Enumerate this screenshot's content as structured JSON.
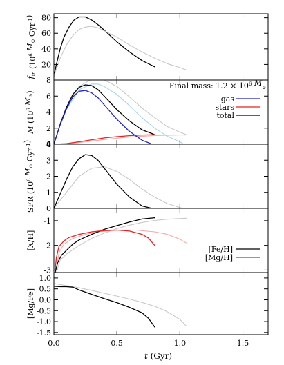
{
  "figure": {
    "xlabel": "t (Gyr)",
    "xlim": [
      0,
      1.7
    ],
    "xticks": [
      {
        "value": 0,
        "label": "0.0"
      },
      {
        "value": 0.5,
        "label": "0.5"
      },
      {
        "value": 1.0,
        "label": "1.0"
      },
      {
        "value": 1.5,
        "label": "1.5"
      }
    ],
    "colors": {
      "black": "#000000",
      "grey": "#c8c8c8",
      "blue": "#1f1fd0",
      "lightblue": "#a8d4ee",
      "red": "#e82020",
      "pink": "#f4a8a8"
    }
  },
  "chart_data": [
    {
      "type": "line",
      "id": "fin",
      "ylabel": "f_in (10^6 M_⊙ Gyr^-1)",
      "ylim": [
        0,
        85
      ],
      "yticks": [
        {
          "value": 20,
          "label": "20"
        },
        {
          "value": 40,
          "label": "40"
        },
        {
          "value": 60,
          "label": "60"
        },
        {
          "value": 80,
          "label": "80"
        }
      ],
      "series": [
        {
          "color": "black",
          "width": 1.3,
          "x": [
            0,
            0.02,
            0.05,
            0.08,
            0.12,
            0.16,
            0.2,
            0.25,
            0.3,
            0.35,
            0.4,
            0.5,
            0.6,
            0.7,
            0.8
          ],
          "y": [
            5,
            20,
            40,
            55,
            68,
            77,
            81,
            81,
            77,
            71,
            64,
            49,
            36,
            25,
            17
          ]
        },
        {
          "color": "grey",
          "width": 1.1,
          "x": [
            0,
            0.05,
            0.1,
            0.15,
            0.2,
            0.25,
            0.3,
            0.35,
            0.4,
            0.5,
            0.6,
            0.7,
            0.8,
            0.9,
            1.0,
            1.05
          ],
          "y": [
            5,
            28,
            45,
            57,
            65,
            68,
            69,
            67,
            63,
            55,
            45,
            36,
            28,
            21,
            16,
            13
          ]
        }
      ]
    },
    {
      "type": "line",
      "id": "mass",
      "ylabel": "M (10^6 M_⊙)",
      "ylim": [
        0,
        8
      ],
      "yticks": [
        {
          "value": 0,
          "label": "0"
        },
        {
          "value": 2,
          "label": "2"
        },
        {
          "value": 4,
          "label": "4"
        },
        {
          "value": 6,
          "label": "6"
        },
        {
          "value": 8,
          "label": "8"
        }
      ],
      "annotation": "Final mass: 1.2 × 10^6 M_⊙",
      "legend": [
        {
          "label": "gas",
          "color": "blue"
        },
        {
          "label": "stars",
          "color": "red"
        },
        {
          "label": "total",
          "color": "black"
        }
      ],
      "series": [
        {
          "color": "grey",
          "width": 1.1,
          "x": [
            0,
            0.05,
            0.1,
            0.2,
            0.3,
            0.35,
            0.4,
            0.5,
            0.6,
            0.7,
            0.8,
            0.9,
            1.0,
            1.05
          ],
          "y": [
            0,
            2.5,
            4.5,
            7.2,
            8.1,
            8.2,
            8.0,
            7.2,
            5.9,
            4.5,
            3.3,
            2.2,
            1.5,
            1.2
          ]
        },
        {
          "color": "lightblue",
          "width": 1.1,
          "x": [
            0,
            0.05,
            0.1,
            0.2,
            0.3,
            0.35,
            0.4,
            0.5,
            0.6,
            0.7,
            0.8,
            0.9,
            1.0,
            1.03
          ],
          "y": [
            0,
            2.4,
            4.3,
            6.8,
            7.5,
            7.5,
            7.2,
            6.2,
            4.8,
            3.3,
            2.0,
            1.0,
            0.3,
            0
          ]
        },
        {
          "color": "pink",
          "width": 1.1,
          "x": [
            0,
            0.1,
            0.2,
            0.3,
            0.4,
            0.5,
            0.6,
            0.7,
            0.8,
            0.9,
            1.0,
            1.05
          ],
          "y": [
            0,
            0.05,
            0.2,
            0.4,
            0.58,
            0.75,
            0.9,
            1.0,
            1.08,
            1.12,
            1.15,
            1.15
          ]
        },
        {
          "color": "black",
          "width": 1.3,
          "x": [
            0,
            0.05,
            0.1,
            0.15,
            0.2,
            0.25,
            0.3,
            0.35,
            0.4,
            0.5,
            0.6,
            0.7,
            0.8
          ],
          "y": [
            0,
            2.5,
            4.6,
            6.2,
            7.1,
            7.4,
            7.3,
            6.8,
            6.0,
            4.3,
            2.9,
            1.8,
            1.2
          ]
        },
        {
          "color": "blue",
          "width": 1.3,
          "x": [
            0,
            0.05,
            0.1,
            0.15,
            0.2,
            0.25,
            0.3,
            0.35,
            0.4,
            0.5,
            0.6,
            0.7,
            0.78
          ],
          "y": [
            0,
            2.4,
            4.4,
            5.9,
            6.6,
            6.7,
            6.4,
            5.8,
            4.9,
            3.1,
            1.6,
            0.5,
            0
          ]
        },
        {
          "color": "red",
          "width": 1.3,
          "x": [
            0,
            0.1,
            0.2,
            0.3,
            0.4,
            0.5,
            0.6,
            0.7,
            0.8
          ],
          "y": [
            0,
            0.08,
            0.3,
            0.55,
            0.78,
            0.95,
            1.07,
            1.15,
            1.2
          ]
        }
      ]
    },
    {
      "type": "line",
      "id": "sfr",
      "ylabel": "SFR (10^6 M_⊙ Gyr^-1)",
      "ylim": [
        0,
        4
      ],
      "yticks": [
        {
          "value": 0,
          "label": "0"
        },
        {
          "value": 1,
          "label": "1"
        },
        {
          "value": 2,
          "label": "2"
        },
        {
          "value": 3,
          "label": "3"
        },
        {
          "value": 4,
          "label": "4"
        }
      ],
      "series": [
        {
          "color": "grey",
          "width": 1.1,
          "x": [
            0,
            0.1,
            0.2,
            0.3,
            0.4,
            0.5,
            0.6,
            0.7,
            0.8,
            0.9,
            1.0,
            1.03
          ],
          "y": [
            0,
            1.0,
            2.0,
            2.5,
            2.6,
            2.3,
            1.8,
            1.2,
            0.7,
            0.3,
            0.05,
            0
          ]
        },
        {
          "color": "black",
          "width": 1.3,
          "x": [
            0,
            0.05,
            0.1,
            0.15,
            0.2,
            0.25,
            0.3,
            0.35,
            0.4,
            0.5,
            0.6,
            0.7,
            0.78
          ],
          "y": [
            0,
            0.9,
            1.8,
            2.6,
            3.1,
            3.35,
            3.3,
            3.0,
            2.5,
            1.5,
            0.7,
            0.15,
            0
          ]
        }
      ]
    },
    {
      "type": "line",
      "id": "xh",
      "ylabel": "[X/H]",
      "ylim": [
        -3.1,
        -0.5
      ],
      "yticks": [
        {
          "value": -3,
          "label": "-3"
        },
        {
          "value": -2,
          "label": "-2"
        },
        {
          "value": -1,
          "label": "-1"
        }
      ],
      "legend": [
        {
          "label": "[Fe/H]",
          "color": "black"
        },
        {
          "label": "[Mg/H]",
          "color": "red"
        }
      ],
      "series": [
        {
          "color": "grey",
          "width": 1.1,
          "x": [
            0.02,
            0.05,
            0.1,
            0.2,
            0.3,
            0.4,
            0.5,
            0.6,
            0.7,
            0.8,
            0.9,
            1.05
          ],
          "y": [
            -3.1,
            -2.6,
            -2.35,
            -2.0,
            -1.72,
            -1.5,
            -1.32,
            -1.18,
            -1.07,
            -0.99,
            -0.94,
            -0.9
          ]
        },
        {
          "color": "pink",
          "width": 1.1,
          "x": [
            0.02,
            0.04,
            0.08,
            0.15,
            0.25,
            0.35,
            0.5,
            0.65,
            0.8,
            0.9,
            1.0,
            1.05
          ],
          "y": [
            -3.0,
            -2.3,
            -1.95,
            -1.72,
            -1.55,
            -1.45,
            -1.38,
            -1.38,
            -1.45,
            -1.55,
            -1.75,
            -1.9
          ]
        },
        {
          "color": "black",
          "width": 1.3,
          "x": [
            0.01,
            0.03,
            0.06,
            0.1,
            0.15,
            0.2,
            0.3,
            0.4,
            0.5,
            0.6,
            0.7,
            0.8
          ],
          "y": [
            -3.1,
            -2.7,
            -2.4,
            -2.2,
            -1.95,
            -1.78,
            -1.55,
            -1.35,
            -1.2,
            -1.05,
            -0.93,
            -0.88
          ]
        },
        {
          "color": "red",
          "width": 1.3,
          "x": [
            0.01,
            0.02,
            0.04,
            0.08,
            0.12,
            0.2,
            0.3,
            0.4,
            0.5,
            0.6,
            0.7,
            0.75,
            0.8
          ],
          "y": [
            -3.0,
            -2.5,
            -2.05,
            -1.82,
            -1.68,
            -1.55,
            -1.45,
            -1.4,
            -1.38,
            -1.42,
            -1.55,
            -1.7,
            -2.0
          ]
        }
      ]
    },
    {
      "type": "line",
      "id": "mgfe",
      "ylabel": "[Mg/Fe]",
      "ylim": [
        -1.6,
        1.25
      ],
      "yticks": [
        {
          "value": 1.0,
          "label": "1.0"
        },
        {
          "value": 0.5,
          "label": "0.5"
        },
        {
          "value": 0.0,
          "label": "0.0"
        },
        {
          "value": -0.5,
          "label": "-0.5"
        },
        {
          "value": -1.0,
          "label": "-1.0"
        },
        {
          "value": -1.5,
          "label": "-1.5"
        }
      ],
      "series": [
        {
          "color": "grey",
          "width": 1.1,
          "x": [
            0,
            0.05,
            0.1,
            0.2,
            0.3,
            0.4,
            0.5,
            0.6,
            0.7,
            0.8,
            0.9,
            1.0,
            1.05
          ],
          "y": [
            0.75,
            0.7,
            0.65,
            0.55,
            0.43,
            0.3,
            0.17,
            0.03,
            -0.12,
            -0.3,
            -0.55,
            -0.9,
            -1.2
          ]
        },
        {
          "color": "black",
          "width": 1.3,
          "x": [
            0,
            0.05,
            0.1,
            0.15,
            0.2,
            0.3,
            0.4,
            0.5,
            0.6,
            0.7,
            0.75,
            0.8
          ],
          "y": [
            0.62,
            0.6,
            0.6,
            0.58,
            0.45,
            0.25,
            0.05,
            -0.13,
            -0.35,
            -0.6,
            -0.85,
            -1.25
          ]
        }
      ]
    }
  ]
}
